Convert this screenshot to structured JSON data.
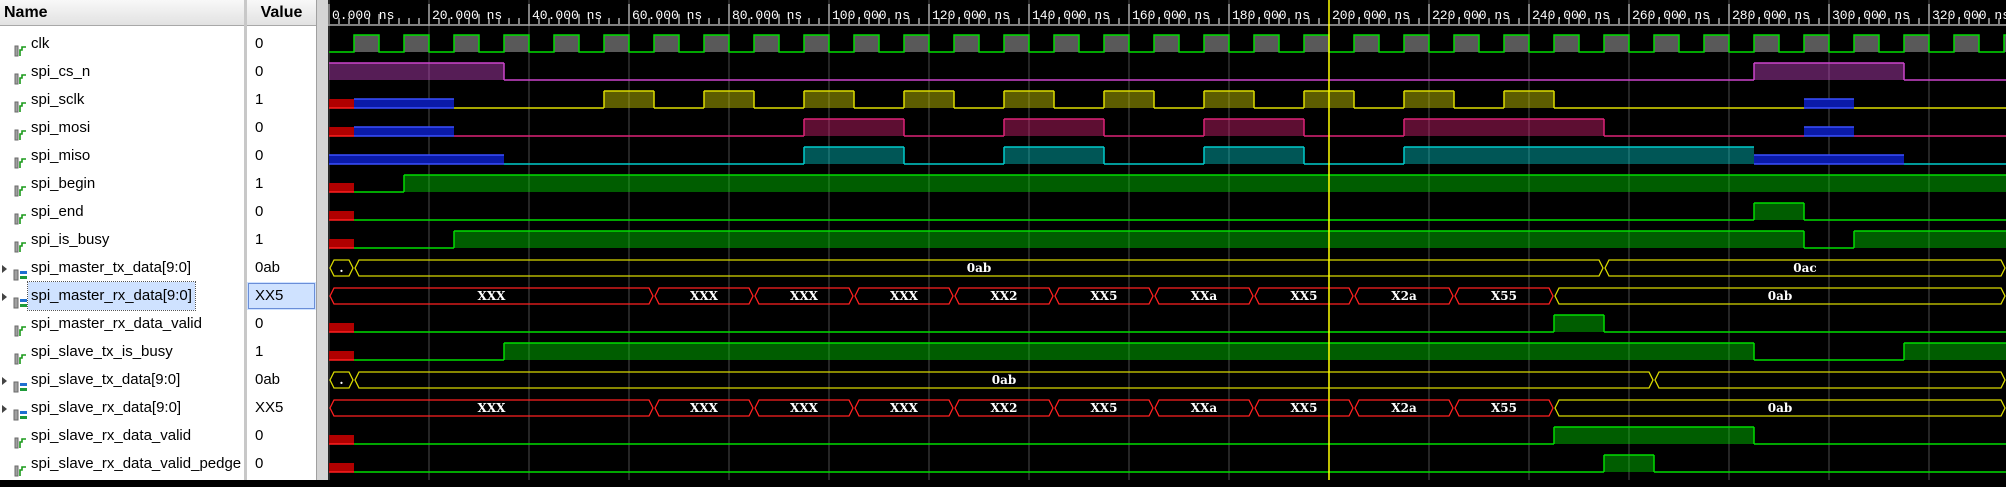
{
  "headers": {
    "name": "Name",
    "value": "Value"
  },
  "signals": [
    {
      "name": "clk",
      "value": "0",
      "kind": "bit",
      "color": "#00dd00"
    },
    {
      "name": "spi_cs_n",
      "value": "0",
      "kind": "bit",
      "color": "#cc44cc"
    },
    {
      "name": "spi_sclk",
      "value": "1",
      "kind": "bit",
      "color": "#dddd00"
    },
    {
      "name": "spi_mosi",
      "value": "0",
      "kind": "bit",
      "color": "#dd2277"
    },
    {
      "name": "spi_miso",
      "value": "0",
      "kind": "bit",
      "color": "#00cccc"
    },
    {
      "name": "spi_begin",
      "value": "1",
      "kind": "bit",
      "color": "#00dd00"
    },
    {
      "name": "spi_end",
      "value": "0",
      "kind": "bit",
      "color": "#00dd00"
    },
    {
      "name": "spi_is_busy",
      "value": "1",
      "kind": "bit",
      "color": "#00dd00"
    },
    {
      "name": "spi_master_tx_data[9:0]",
      "value": "0ab",
      "kind": "bus",
      "color": "#dddd00"
    },
    {
      "name": "spi_master_rx_data[9:0]",
      "value": "XX5",
      "kind": "bus",
      "color": "#ff2020",
      "selected": true
    },
    {
      "name": "spi_master_rx_data_valid",
      "value": "0",
      "kind": "bit",
      "color": "#00dd00"
    },
    {
      "name": "spi_slave_tx_is_busy",
      "value": "1",
      "kind": "bit",
      "color": "#00dd00"
    },
    {
      "name": "spi_slave_tx_data[9:0]",
      "value": "0ab",
      "kind": "bus",
      "color": "#dddd00"
    },
    {
      "name": "spi_slave_rx_data[9:0]",
      "value": "XX5",
      "kind": "bus",
      "color": "#ff2020"
    },
    {
      "name": "spi_slave_rx_data_valid",
      "value": "0",
      "kind": "bit",
      "color": "#00dd00"
    },
    {
      "name": "spi_slave_rx_data_valid_pedge",
      "value": "0",
      "kind": "bit",
      "color": "#00dd00"
    }
  ],
  "timeline": {
    "unit": "ns",
    "ticks": [
      "0.000 ns",
      "20.000 ns",
      "40.000 ns",
      "60.000 ns",
      "80.000 ns",
      "100.000 ns",
      "120.000 ns",
      "140.000 ns",
      "160.000 ns",
      "180.000 ns",
      "200.000 ns",
      "220.000 ns",
      "240.000 ns",
      "260.000 ns",
      "280.000 ns",
      "300.000 ns",
      "320.000 ns"
    ],
    "cursor_ns": 200
  },
  "waves": {
    "spi_cs_n": [
      [
        0,
        1
      ],
      [
        35,
        0
      ],
      [
        285,
        1
      ],
      [
        315,
        0
      ]
    ],
    "spi_sclk": [
      [
        0,
        "x"
      ],
      [
        5,
        "b"
      ],
      [
        25,
        0
      ],
      [
        55,
        1
      ],
      [
        65,
        0
      ],
      [
        75,
        1
      ],
      [
        85,
        0
      ],
      [
        95,
        1
      ],
      [
        105,
        0
      ],
      [
        115,
        1
      ],
      [
        125,
        0
      ],
      [
        135,
        1
      ],
      [
        145,
        0
      ],
      [
        155,
        1
      ],
      [
        165,
        0
      ],
      [
        175,
        1
      ],
      [
        185,
        0
      ],
      [
        195,
        1
      ],
      [
        205,
        0
      ],
      [
        215,
        1
      ],
      [
        225,
        0
      ],
      [
        235,
        1
      ],
      [
        245,
        0
      ],
      [
        295,
        "b"
      ],
      [
        305,
        0
      ]
    ],
    "spi_mosi": [
      [
        0,
        "x"
      ],
      [
        5,
        "b"
      ],
      [
        25,
        0
      ],
      [
        95,
        1
      ],
      [
        115,
        0
      ],
      [
        135,
        1
      ],
      [
        155,
        0
      ],
      [
        175,
        1
      ],
      [
        195,
        0
      ],
      [
        215,
        1
      ],
      [
        255,
        0
      ],
      [
        295,
        "b"
      ],
      [
        305,
        0
      ]
    ],
    "spi_miso": [
      [
        0,
        "b"
      ],
      [
        35,
        0
      ],
      [
        95,
        1
      ],
      [
        115,
        0
      ],
      [
        135,
        1
      ],
      [
        155,
        0
      ],
      [
        175,
        1
      ],
      [
        195,
        0
      ],
      [
        215,
        1
      ],
      [
        285,
        "b"
      ],
      [
        315,
        0
      ]
    ],
    "spi_begin": [
      [
        0,
        "x"
      ],
      [
        5,
        0
      ],
      [
        15,
        1
      ]
    ],
    "spi_end": [
      [
        0,
        "x"
      ],
      [
        5,
        0
      ],
      [
        285,
        1
      ],
      [
        295,
        0
      ]
    ],
    "spi_is_busy": [
      [
        0,
        "x"
      ],
      [
        5,
        0
      ],
      [
        25,
        1
      ],
      [
        295,
        0
      ],
      [
        305,
        1
      ]
    ],
    "spi_master_rx_data_valid": [
      [
        0,
        "x"
      ],
      [
        5,
        0
      ],
      [
        245,
        1
      ],
      [
        255,
        0
      ]
    ],
    "spi_slave_tx_is_busy": [
      [
        0,
        "x"
      ],
      [
        5,
        0
      ],
      [
        35,
        1
      ],
      [
        285,
        0
      ],
      [
        315,
        1
      ]
    ],
    "spi_slave_rx_data_valid": [
      [
        0,
        "x"
      ],
      [
        5,
        0
      ],
      [
        245,
        1
      ],
      [
        285,
        0
      ]
    ],
    "spi_slave_rx_data_valid_pedge": [
      [
        0,
        "x"
      ],
      [
        5,
        0
      ],
      [
        255,
        1
      ],
      [
        265,
        0
      ]
    ],
    "spi_master_tx_data[9:0]": {
      "style": "ok",
      "segs": [
        [
          0,
          5,
          "."
        ],
        [
          5,
          255,
          "0ab"
        ],
        [
          255,
          340,
          "0ac"
        ]
      ]
    },
    "spi_master_rx_data[9:0]": {
      "style": "x",
      "segs": [
        [
          0,
          65,
          "XXX"
        ],
        [
          65,
          85,
          "XXX"
        ],
        [
          85,
          105,
          "XXX"
        ],
        [
          105,
          125,
          "XXX"
        ],
        [
          125,
          145,
          "XX2"
        ],
        [
          145,
          165,
          "XX5"
        ],
        [
          165,
          185,
          "XXa"
        ],
        [
          185,
          205,
          "XX5"
        ],
        [
          205,
          225,
          "X2a"
        ],
        [
          225,
          245,
          "X55"
        ],
        [
          245,
          340,
          "0ab",
          "ok"
        ]
      ]
    },
    "spi_slave_tx_data[9:0]": {
      "style": "ok",
      "segs": [
        [
          0,
          5,
          "."
        ],
        [
          5,
          265,
          "0ab"
        ],
        [
          265,
          340,
          ""
        ]
      ]
    },
    "spi_slave_rx_data[9:0]": {
      "style": "x",
      "segs": [
        [
          0,
          65,
          "XXX"
        ],
        [
          65,
          85,
          "XXX"
        ],
        [
          85,
          105,
          "XXX"
        ],
        [
          105,
          125,
          "XXX"
        ],
        [
          125,
          145,
          "XX2"
        ],
        [
          145,
          165,
          "XX5"
        ],
        [
          165,
          185,
          "XXa"
        ],
        [
          185,
          205,
          "XX5"
        ],
        [
          205,
          225,
          "X2a"
        ],
        [
          225,
          245,
          "X55"
        ],
        [
          245,
          340,
          "0ab",
          "ok"
        ]
      ]
    }
  }
}
